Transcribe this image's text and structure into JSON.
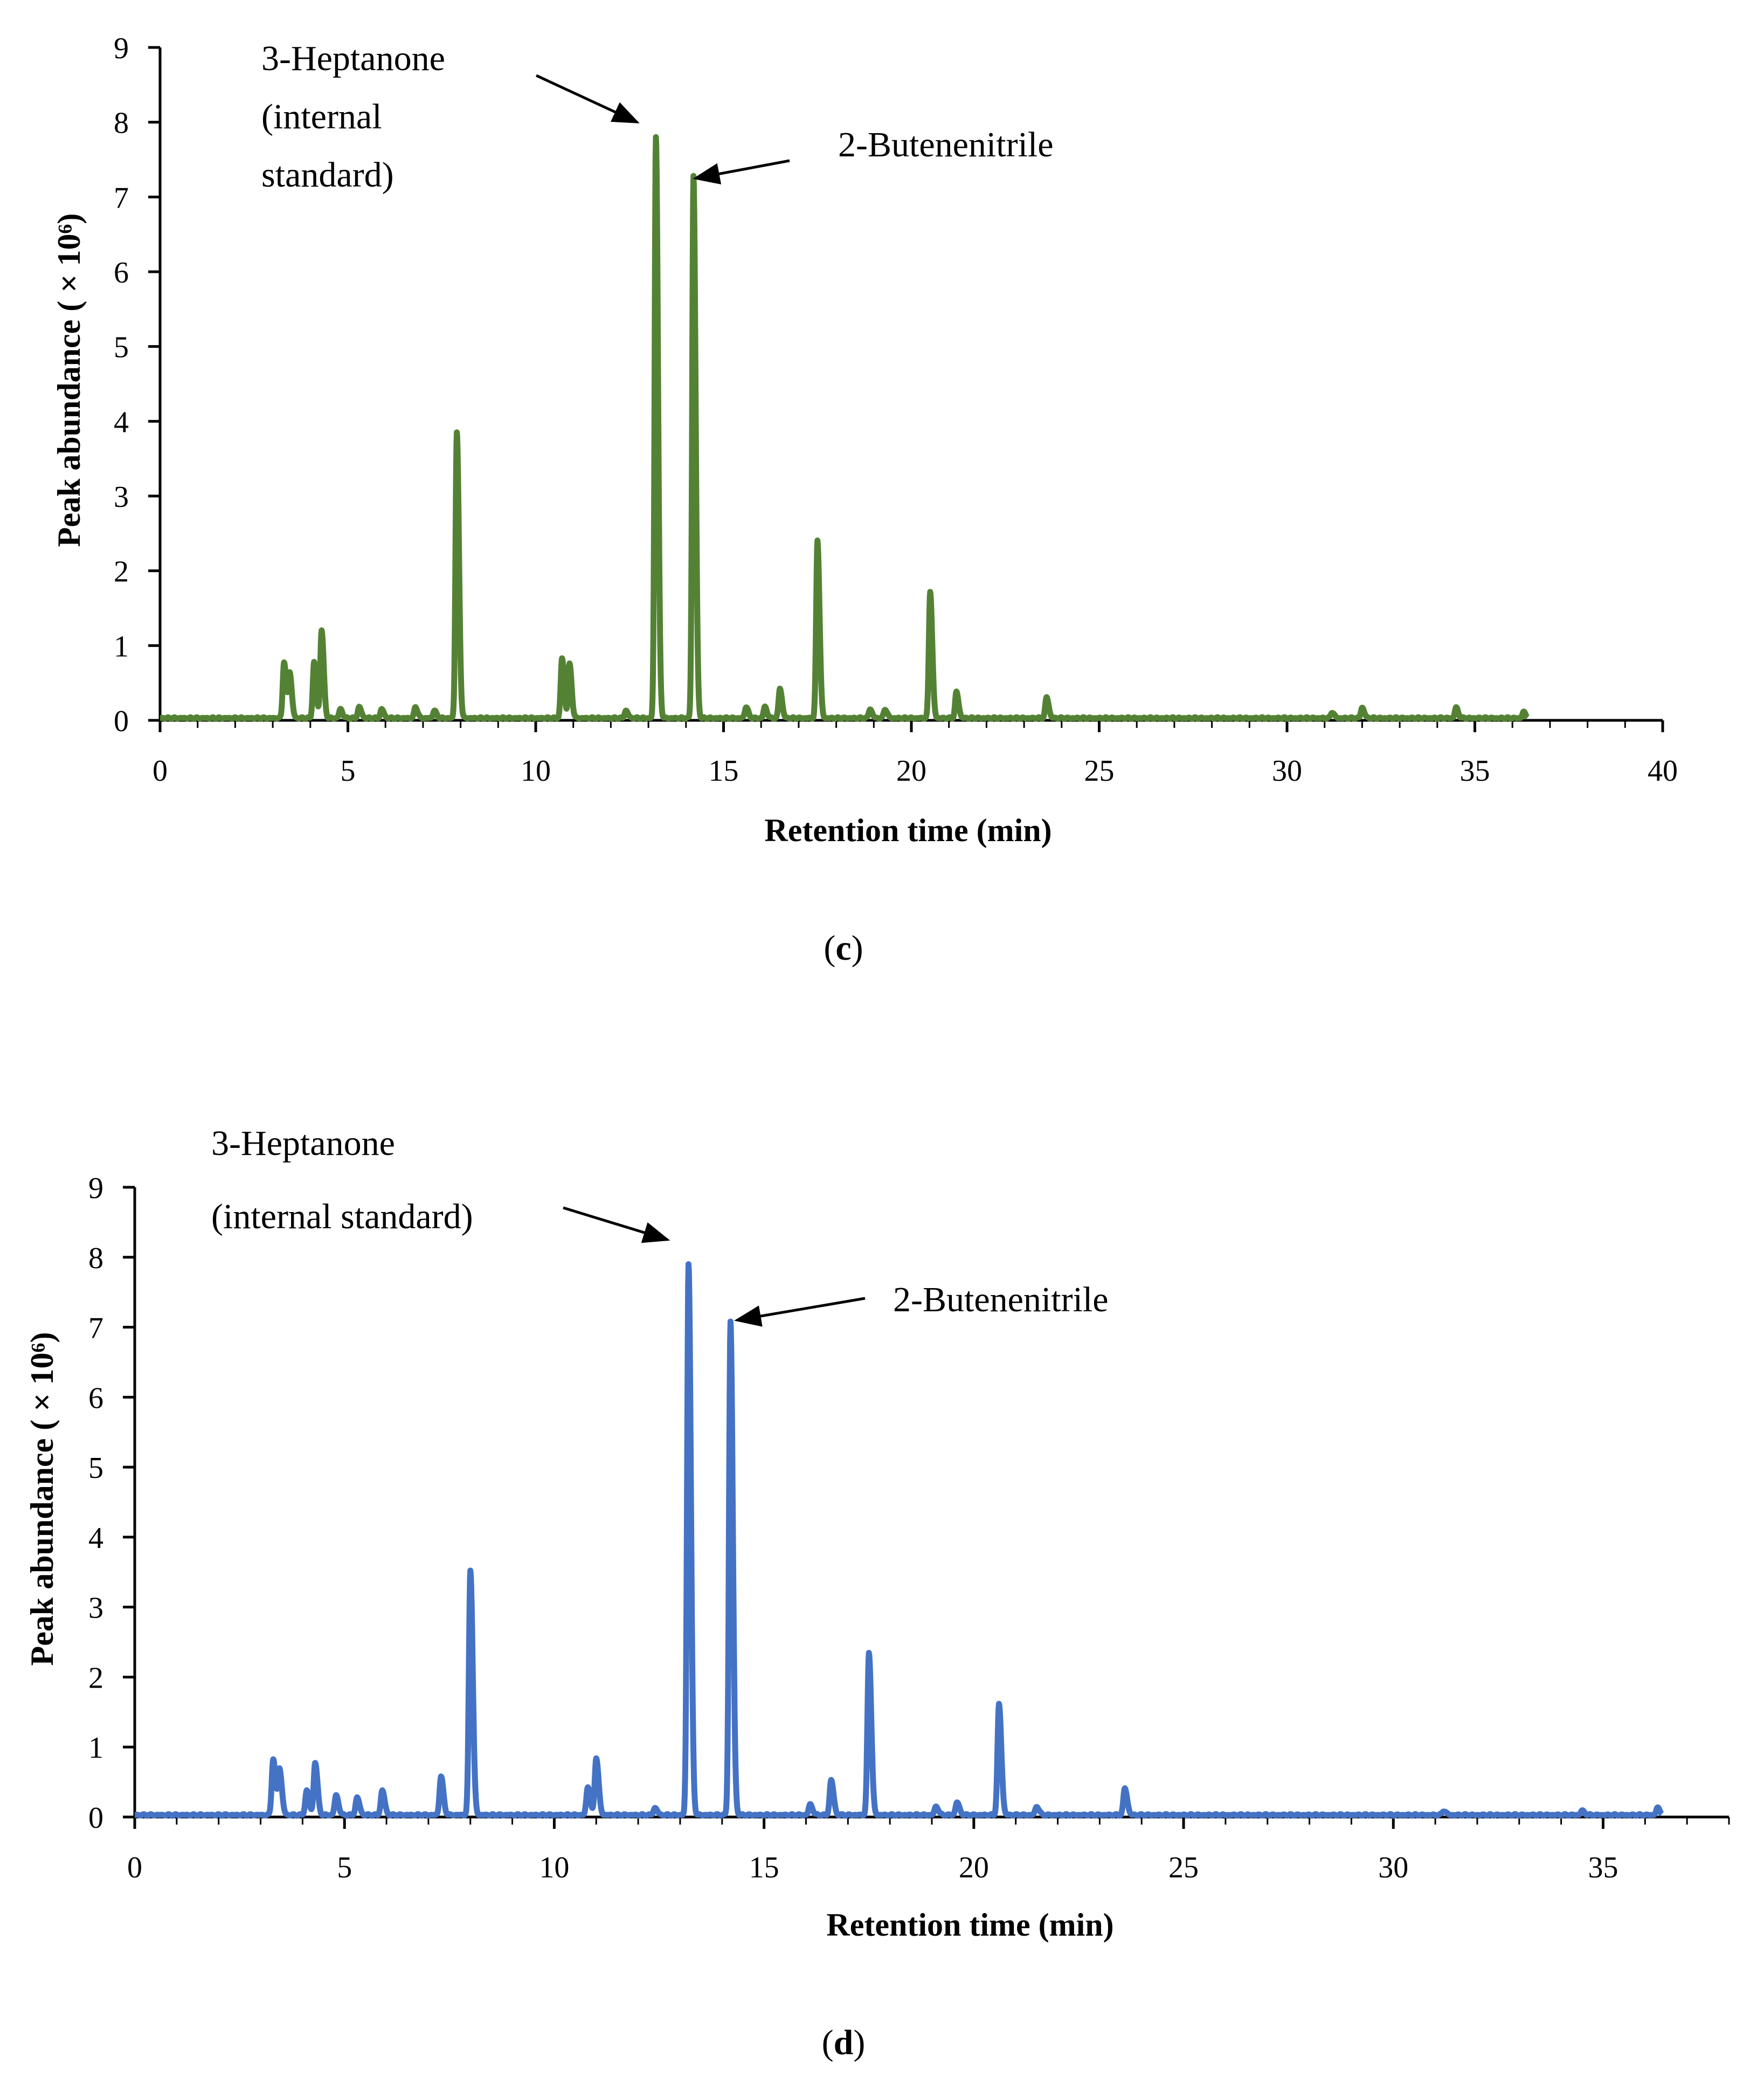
{
  "chart_data": [
    {
      "panel": "(c)",
      "panel_letter": "c",
      "type": "line",
      "color": "#548235",
      "xlabel": "Retention time (min)",
      "ylabel": "Peak abundance ( × 10⁶)",
      "xlim": [
        0,
        40
      ],
      "ylim": [
        0,
        9
      ],
      "xticks": [
        0,
        5,
        10,
        15,
        20,
        25,
        30,
        35,
        40
      ],
      "yticks": [
        0,
        1,
        2,
        3,
        4,
        5,
        6,
        7,
        8,
        9
      ],
      "end_time": 36.4,
      "baseline": 0.03,
      "peaks": [
        {
          "x": 3.3,
          "y": 0.75
        },
        {
          "x": 3.45,
          "y": 0.6
        },
        {
          "x": 4.1,
          "y": 0.75
        },
        {
          "x": 4.3,
          "y": 1.18
        },
        {
          "x": 4.8,
          "y": 0.12
        },
        {
          "x": 5.3,
          "y": 0.15
        },
        {
          "x": 5.9,
          "y": 0.12
        },
        {
          "x": 6.8,
          "y": 0.15
        },
        {
          "x": 7.3,
          "y": 0.1
        },
        {
          "x": 7.9,
          "y": 3.82
        },
        {
          "x": 10.7,
          "y": 0.8
        },
        {
          "x": 10.9,
          "y": 0.72
        },
        {
          "x": 12.4,
          "y": 0.1
        },
        {
          "x": 13.2,
          "y": 7.78
        },
        {
          "x": 14.2,
          "y": 7.25
        },
        {
          "x": 15.6,
          "y": 0.15
        },
        {
          "x": 16.1,
          "y": 0.15
        },
        {
          "x": 16.5,
          "y": 0.4
        },
        {
          "x": 17.5,
          "y": 2.38
        },
        {
          "x": 18.9,
          "y": 0.12
        },
        {
          "x": 19.3,
          "y": 0.12
        },
        {
          "x": 20.5,
          "y": 1.7
        },
        {
          "x": 21.2,
          "y": 0.35
        },
        {
          "x": 23.6,
          "y": 0.28
        },
        {
          "x": 31.2,
          "y": 0.08
        },
        {
          "x": 32.0,
          "y": 0.14
        },
        {
          "x": 34.5,
          "y": 0.14
        },
        {
          "x": 36.3,
          "y": 0.08
        }
      ],
      "annotations": [
        {
          "name": "heptanone",
          "lines": [
            "3-Heptanone",
            "(internal",
            "standard)"
          ],
          "target": {
            "x": 12.7,
            "y": 8.0
          }
        },
        {
          "name": "butenenitrile",
          "lines": [
            "2-Butenenitrile"
          ],
          "target": {
            "x": 14.25,
            "y": 7.25
          }
        }
      ]
    },
    {
      "panel": "(d)",
      "panel_letter": "d",
      "type": "line",
      "color": "#4472C4",
      "xlabel": "Retention time (min)",
      "ylabel": "Peak abundance ( × 10⁶)",
      "xlim": [
        0,
        38
      ],
      "ylim": [
        0,
        9
      ],
      "xticks": [
        0,
        5,
        10,
        15,
        20,
        25,
        30,
        35
      ],
      "yticks": [
        0,
        1,
        2,
        3,
        4,
        5,
        6,
        7,
        8,
        9
      ],
      "end_time": 36.4,
      "baseline": 0.03,
      "peaks": [
        {
          "x": 3.3,
          "y": 0.8
        },
        {
          "x": 3.45,
          "y": 0.65
        },
        {
          "x": 4.1,
          "y": 0.35
        },
        {
          "x": 4.3,
          "y": 0.75
        },
        {
          "x": 4.8,
          "y": 0.28
        },
        {
          "x": 5.3,
          "y": 0.25
        },
        {
          "x": 5.9,
          "y": 0.35
        },
        {
          "x": 7.3,
          "y": 0.55
        },
        {
          "x": 8.0,
          "y": 3.5
        },
        {
          "x": 10.8,
          "y": 0.4
        },
        {
          "x": 11.0,
          "y": 0.82
        },
        {
          "x": 12.4,
          "y": 0.1
        },
        {
          "x": 13.2,
          "y": 7.88
        },
        {
          "x": 14.2,
          "y": 7.05
        },
        {
          "x": 16.1,
          "y": 0.15
        },
        {
          "x": 16.6,
          "y": 0.5
        },
        {
          "x": 17.5,
          "y": 2.32
        },
        {
          "x": 19.1,
          "y": 0.12
        },
        {
          "x": 19.6,
          "y": 0.18
        },
        {
          "x": 20.6,
          "y": 1.58
        },
        {
          "x": 21.5,
          "y": 0.12
        },
        {
          "x": 23.6,
          "y": 0.38
        },
        {
          "x": 31.2,
          "y": 0.06
        },
        {
          "x": 34.5,
          "y": 0.06
        },
        {
          "x": 36.3,
          "y": 0.1
        }
      ],
      "annotations": [
        {
          "name": "heptanone",
          "lines": [
            "3-Heptanone",
            "(internal standard)"
          ],
          "target": {
            "x": 12.7,
            "y": 8.25
          }
        },
        {
          "name": "butenenitrile",
          "lines": [
            "2-Butenenitrile"
          ],
          "target": {
            "x": 14.35,
            "y": 7.1
          }
        }
      ]
    }
  ]
}
